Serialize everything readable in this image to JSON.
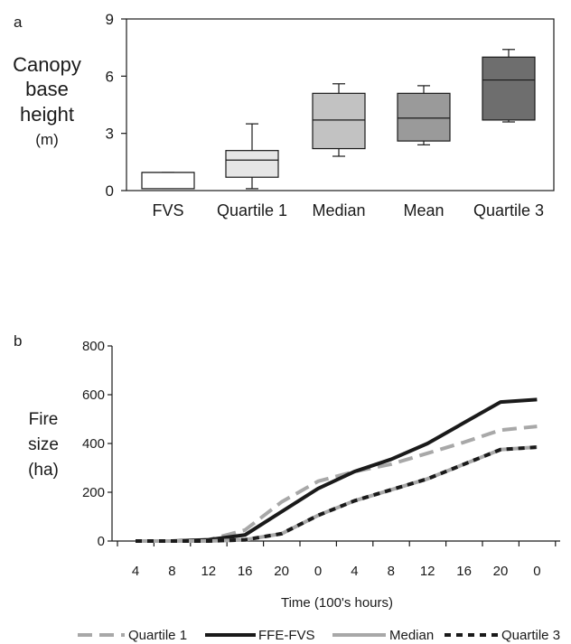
{
  "chart_data": [
    {
      "panel": "a",
      "type": "box",
      "ylabel_lines": [
        "Canopy",
        "base",
        "height",
        "(m)"
      ],
      "ylim": [
        0,
        9
      ],
      "yticks": [
        "0",
        "3",
        "6",
        "9"
      ],
      "categories": [
        "FVS",
        "Quartile 1",
        "Median",
        "Mean",
        "Quartile 3"
      ],
      "boxes": [
        {
          "label": "FVS",
          "min": 0.1,
          "q1": 0.1,
          "median": 0.95,
          "q3": 0.95,
          "max": 0.95,
          "color": "#ffffff"
        },
        {
          "label": "Quartile 1",
          "min": 0.1,
          "q1": 0.7,
          "median": 1.6,
          "q3": 2.1,
          "max": 3.5,
          "color": "#e6e6e6"
        },
        {
          "label": "Median",
          "min": 1.8,
          "q1": 2.2,
          "median": 3.7,
          "q3": 5.1,
          "max": 5.6,
          "color": "#c2c2c2"
        },
        {
          "label": "Mean",
          "min": 2.4,
          "q1": 2.6,
          "median": 3.8,
          "q3": 5.1,
          "max": 5.5,
          "color": "#9a9a9a"
        },
        {
          "label": "Quartile 3",
          "min": 3.6,
          "q1": 3.7,
          "median": 5.8,
          "q3": 7.0,
          "max": 7.4,
          "color": "#6e6e6e"
        }
      ]
    },
    {
      "panel": "b",
      "type": "line",
      "ylabel_lines": [
        "Fire",
        "size",
        "(ha)"
      ],
      "xlabel": "Time (100's hours)",
      "ylim": [
        0,
        800
      ],
      "yticks": [
        "0",
        "200",
        "400",
        "600",
        "800"
      ],
      "categories": [
        "4",
        "8",
        "12",
        "16",
        "20",
        "0",
        "4",
        "8",
        "12",
        "16",
        "20",
        "0"
      ],
      "series": [
        {
          "name": "Quartile 1",
          "color": "#a8a8a8",
          "style": "dashed",
          "values": [
            0,
            0,
            5,
            45,
            160,
            245,
            285,
            315,
            360,
            405,
            455,
            470
          ]
        },
        {
          "name": "FFE-FVS",
          "color": "#1a1a1a",
          "style": "solid",
          "values": [
            0,
            0,
            5,
            25,
            120,
            215,
            285,
            335,
            400,
            485,
            570,
            580
          ]
        },
        {
          "name": "Median",
          "color": "#a8a8a8",
          "style": "solid",
          "values": [
            0,
            0,
            0,
            5,
            30,
            105,
            165,
            210,
            255,
            315,
            375,
            385
          ]
        },
        {
          "name": "Quartile 3",
          "color": "#1a1a1a",
          "style": "dashed",
          "values": [
            0,
            0,
            0,
            5,
            30,
            105,
            165,
            210,
            255,
            315,
            375,
            385
          ]
        }
      ]
    }
  ]
}
